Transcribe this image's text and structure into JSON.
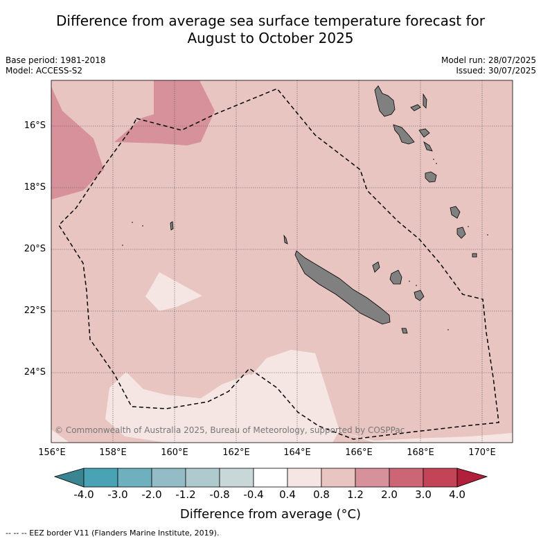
{
  "title_line1": "Difference from average sea surface temperature forecast for",
  "title_line2": "August to October 2025",
  "base_period": "Base period: 1981-2018",
  "model": "Model: ACCESS-S2",
  "model_run": "Model run: 28/07/2025",
  "issued": "Issued: 30/07/2025",
  "copyright": "© Commonwealth of Australia 2025, Bureau of Meteorology, supported by COSPPac",
  "lat_labels": [
    "16°S",
    "18°S",
    "20°S",
    "22°S",
    "24°S"
  ],
  "lon_labels": [
    "156°E",
    "158°E",
    "160°E",
    "162°E",
    "164°E",
    "166°E",
    "168°E",
    "170°E"
  ],
  "colorbar": {
    "ticks": [
      "-4.0",
      "-3.0",
      "-2.0",
      "-1.2",
      "-0.8",
      "-0.4",
      "0.4",
      "0.8",
      "1.2",
      "2.0",
      "3.0",
      "4.0"
    ],
    "colors": [
      "#3a8591",
      "#4aa3b4",
      "#6fb0be",
      "#93bcc7",
      "#aecacd",
      "#c8d8d8",
      "#ffffff",
      "#f5e6e4",
      "#e8c5c1",
      "#d7919a",
      "#cc6674",
      "#c24456",
      "#b11f3a"
    ],
    "title": "Difference from average (°C)"
  },
  "map_colors": {
    "background": "#e8c5c1",
    "warm_band": "#d7919a",
    "neutral_band": "#f5e6e4",
    "land": "#808080"
  },
  "footer": "--  --  -- EEZ border V11 (Flanders Marine Institute, 2019)."
}
